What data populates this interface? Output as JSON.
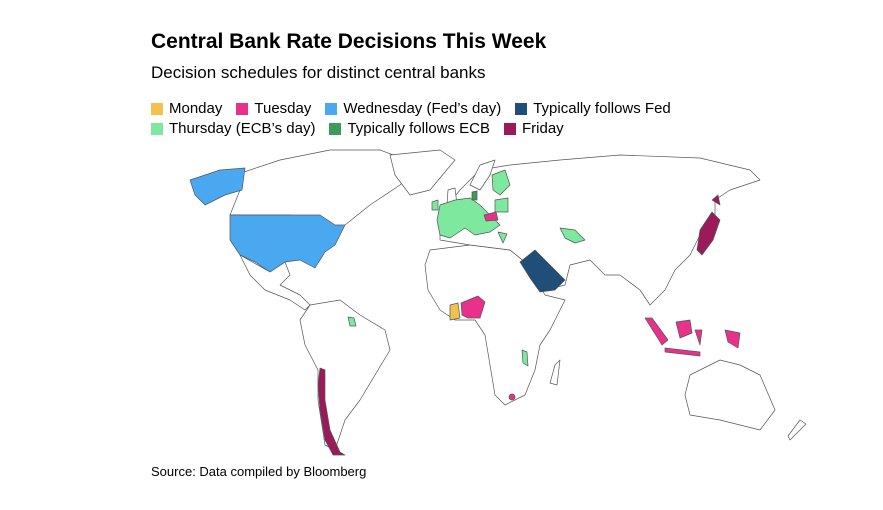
{
  "title": "Central Bank Rate Decisions This Week",
  "subtitle": "Decision schedules for distinct central banks",
  "source": "Source: Data compiled by Bloomberg",
  "legend": [
    {
      "label": "Monday",
      "key": "monday",
      "color": "#f2c14e"
    },
    {
      "label": "Tuesday",
      "key": "tuesday",
      "color": "#e8318a"
    },
    {
      "label": "Wednesday (Fed’s day)",
      "key": "wednesday",
      "color": "#4aa8f0"
    },
    {
      "label": "Typically follows Fed",
      "key": "follows_fed",
      "color": "#1f4e79"
    },
    {
      "label": "Thursday (ECB’s day)",
      "key": "thursday",
      "color": "#7de89e"
    },
    {
      "label": "Typically follows ECB",
      "key": "follows_ecb",
      "color": "#3f9b5c"
    },
    {
      "label": "Friday",
      "key": "friday",
      "color": "#9b1b5a"
    }
  ],
  "land_color": "#ffffff",
  "border_color": "#555555",
  "regions": {
    "wednesday": [
      "United States"
    ],
    "follows_fed": [
      "Saudi Arabia"
    ],
    "thursday": [
      "Euro area",
      "French Guiana",
      "Malawi",
      "Uzbekistan"
    ],
    "follows_ecb": [
      "Denmark"
    ],
    "tuesday": [
      "Hungary",
      "Nigeria",
      "Indonesia",
      "Lesotho"
    ],
    "monday": [
      "Ghana"
    ],
    "friday": [
      "Chile",
      "Japan"
    ]
  }
}
